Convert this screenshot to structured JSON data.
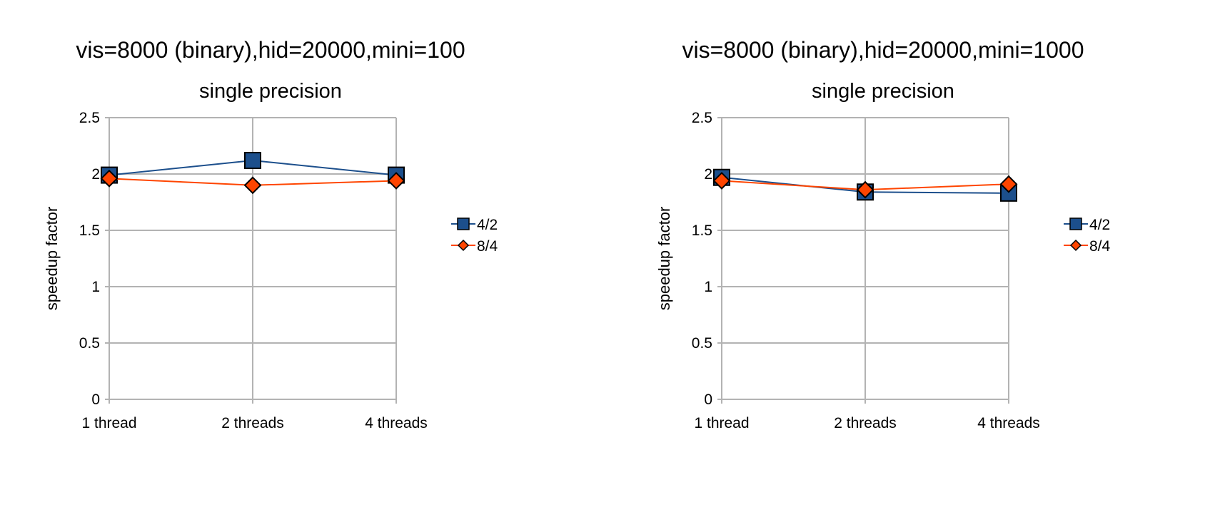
{
  "chart_data": [
    {
      "type": "line",
      "title": "vis=8000 (binary),hid=20000,mini=100",
      "subtitle": "single precision",
      "xlabel": "",
      "ylabel": "speedup factor",
      "categories": [
        "1 thread",
        "2 threads",
        "4 threads"
      ],
      "ylim": [
        0,
        2.5
      ],
      "yticks": [
        "0",
        "0.5",
        "1",
        "1.5",
        "2",
        "2.5"
      ],
      "grid": true,
      "legend_position": "right",
      "series": [
        {
          "name": "4/2",
          "values": [
            1.99,
            2.12,
            1.99
          ],
          "color": "#1c4f8c",
          "marker": "square"
        },
        {
          "name": "8/4",
          "values": [
            1.96,
            1.9,
            1.94
          ],
          "color": "#ff4500",
          "marker": "diamond"
        }
      ]
    },
    {
      "type": "line",
      "title": "vis=8000 (binary),hid=20000,mini=1000",
      "subtitle": "single precision",
      "xlabel": "",
      "ylabel": "speedup factor",
      "categories": [
        "1 thread",
        "2 threads",
        "4 threads"
      ],
      "ylim": [
        0,
        2.5
      ],
      "yticks": [
        "0",
        "0.5",
        "1",
        "1.5",
        "2",
        "2.5"
      ],
      "grid": true,
      "legend_position": "right",
      "series": [
        {
          "name": "4/2",
          "values": [
            1.97,
            1.84,
            1.83
          ],
          "color": "#1c4f8c",
          "marker": "square"
        },
        {
          "name": "8/4",
          "values": [
            1.94,
            1.86,
            1.91
          ],
          "color": "#ff4500",
          "marker": "diamond"
        }
      ]
    }
  ]
}
